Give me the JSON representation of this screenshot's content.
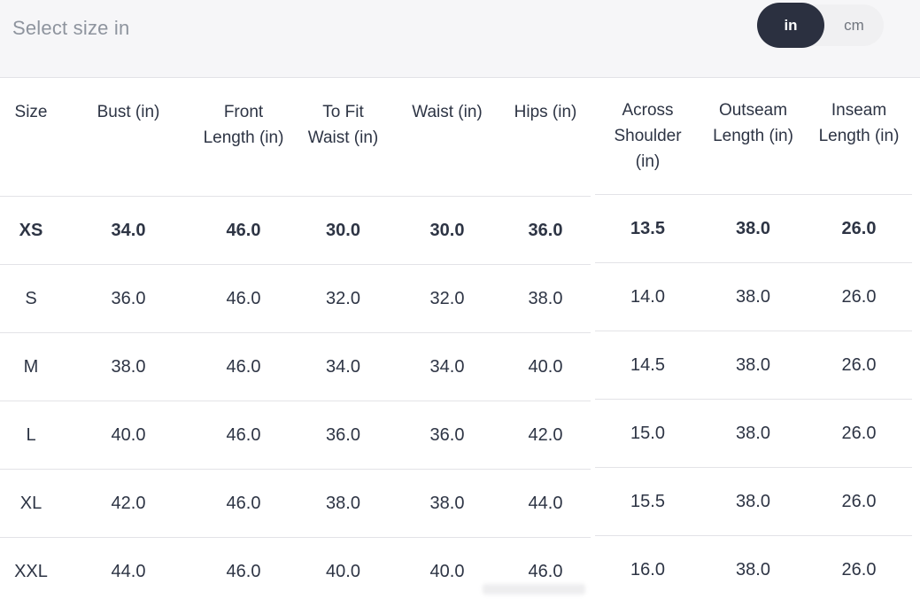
{
  "header": {
    "title": "Select size in",
    "unit_toggle": {
      "selected": "in",
      "in_label": "in",
      "cm_label": "cm"
    }
  },
  "colors": {
    "selected_pill_bg": "#2b3040",
    "selected_pill_text": "#ffffff",
    "toggle_bg": "#f0f0f2",
    "toggle_inactive_text": "#70757e",
    "band_bg": "#f6f6f8",
    "table_text": "#2d3444",
    "muted_text": "#8e949e",
    "divider": "#e3e3e7"
  },
  "table": {
    "columns": [
      {
        "label": "Size",
        "lines": [
          "Size"
        ]
      },
      {
        "label": "Bust (in)",
        "lines": [
          "Bust (in)"
        ]
      },
      {
        "label": "Front Length (in)",
        "lines": [
          "Front",
          "Length (in)"
        ]
      },
      {
        "label": "To Fit Waist (in)",
        "lines": [
          "To Fit",
          "Waist (in)"
        ]
      },
      {
        "label": "Waist (in)",
        "lines": [
          "Waist (in)"
        ]
      },
      {
        "label": "Hips (in)",
        "lines": [
          "Hips (in)"
        ]
      },
      {
        "label": "Across Shoulder (in)",
        "lines": [
          "Across",
          "Shoulder",
          "(in)"
        ]
      },
      {
        "label": "Outseam Length (in)",
        "lines": [
          "Outseam",
          "Length (in)"
        ]
      },
      {
        "label": "Inseam Length (in)",
        "lines": [
          "Inseam",
          "Length (in)"
        ]
      }
    ],
    "rows": [
      {
        "size": "XS",
        "values": [
          "34.0",
          "46.0",
          "30.0",
          "30.0",
          "36.0",
          "13.5",
          "38.0",
          "26.0"
        ],
        "bold": true
      },
      {
        "size": "S",
        "values": [
          "36.0",
          "46.0",
          "32.0",
          "32.0",
          "38.0",
          "14.0",
          "38.0",
          "26.0"
        ],
        "bold": false
      },
      {
        "size": "M",
        "values": [
          "38.0",
          "46.0",
          "34.0",
          "34.0",
          "40.0",
          "14.5",
          "38.0",
          "26.0"
        ],
        "bold": false
      },
      {
        "size": "L",
        "values": [
          "40.0",
          "46.0",
          "36.0",
          "36.0",
          "42.0",
          "15.0",
          "38.0",
          "26.0"
        ],
        "bold": false
      },
      {
        "size": "XL",
        "values": [
          "42.0",
          "46.0",
          "38.0",
          "38.0",
          "44.0",
          "15.5",
          "38.0",
          "26.0"
        ],
        "bold": false
      },
      {
        "size": "XXL",
        "values": [
          "44.0",
          "46.0",
          "40.0",
          "40.0",
          "46.0",
          "16.0",
          "38.0",
          "26.0"
        ],
        "bold": false
      }
    ]
  }
}
